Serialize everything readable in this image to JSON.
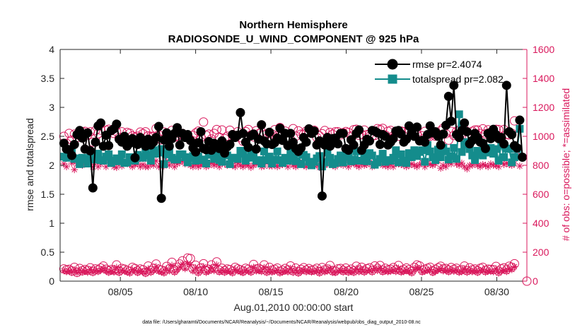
{
  "chart_data": {
    "type": "line",
    "title": "Northern Hemisphere",
    "subtitle": "RADIOSONDE_U_WIND_COMPONENT @ 925 hPa",
    "xlabel": "Aug.01,2010 00:00:00 start",
    "ylabel": "rmse and totalspread",
    "y2label": "# of obs: o=possible; *=assimilated",
    "footnote": "data file: /Users/gharamti/Documents/NCAR/Reanalysis/~/Documents/NCAR/Reanalysis/webpub/obs_diag_output_2010-08.nc",
    "xlim": [
      1,
      32
    ],
    "ylim": [
      0,
      4
    ],
    "y2lim": [
      0,
      1600
    ],
    "x_ticks": [
      5,
      10,
      15,
      20,
      25,
      30
    ],
    "x_tick_labels": [
      "08/05",
      "08/10",
      "08/15",
      "08/20",
      "08/25",
      "08/30"
    ],
    "y_ticks": [
      0,
      0.5,
      1,
      1.5,
      2,
      2.5,
      3,
      3.5,
      4
    ],
    "y_tick_labels": [
      "0",
      "0.5",
      "1",
      "1.5",
      "2",
      "2.5",
      "3",
      "3.5",
      "4"
    ],
    "y2_ticks": [
      0,
      200,
      400,
      600,
      800,
      1000,
      1200,
      1400,
      1600
    ],
    "y2_tick_labels": [
      "0",
      "200",
      "400",
      "600",
      "800",
      "1000",
      "1200",
      "1400",
      "1600"
    ],
    "legend_position": "top-right",
    "series": [
      {
        "name": "rmse",
        "legend": "rmse pr=2.4074",
        "color": "#000000",
        "marker": "circle",
        "values": [
          2.38,
          2.28,
          2.27,
          2.17,
          2.36,
          2.53,
          2.6,
          2.47,
          2.28,
          2.56,
          2.25,
          1.61,
          2.4,
          2.68,
          2.73,
          2.33,
          2.52,
          2.34,
          2.6,
          2.63,
          2.71,
          2.45,
          2.4,
          2.5,
          2.33,
          2.38,
          2.46,
          2.13,
          2.36,
          2.48,
          2.38,
          2.33,
          2.45,
          2.35,
          2.4,
          2.48,
          2.67,
          1.43,
          2.44,
          2.56,
          2.33,
          2.46,
          2.55,
          2.65,
          2.35,
          2.55,
          2.48,
          2.53,
          2.43,
          2.3,
          2.23,
          2.39,
          2.58,
          2.29,
          2.27,
          2.41,
          2.26,
          2.38,
          2.33,
          2.29,
          2.42,
          2.21,
          2.32,
          2.36,
          2.53,
          2.48,
          2.52,
          2.91,
          2.55,
          2.4,
          2.31,
          2.51,
          2.54,
          2.28,
          2.45,
          2.7,
          2.42,
          2.37,
          2.57,
          2.36,
          2.39,
          2.47,
          2.64,
          2.43,
          2.55,
          2.34,
          2.55,
          2.4,
          2.29,
          2.24,
          2.3,
          2.48,
          2.4,
          2.63,
          2.55,
          2.59,
          2.35,
          2.42,
          1.47,
          2.35,
          2.48,
          2.33,
          2.46,
          2.47,
          2.37,
          2.55,
          2.55,
          2.29,
          2.26,
          2.44,
          2.35,
          2.55,
          2.61,
          2.26,
          2.35,
          2.45,
          2.42,
          2.6,
          2.59,
          2.56,
          2.36,
          2.53,
          2.5,
          2.35,
          2.4,
          2.46,
          2.59,
          2.6,
          2.54,
          2.4,
          2.45,
          2.68,
          2.56,
          2.5,
          2.66,
          2.42,
          2.43,
          2.4,
          2.53,
          2.68,
          2.56,
          2.58,
          2.5,
          2.35,
          2.54,
          2.69,
          3.19,
          2.76,
          3.38,
          2.53,
          2.48,
          2.6,
          2.73,
          2.58,
          2.37,
          2.43,
          2.55,
          2.48,
          2.4,
          2.38,
          2.29,
          2.55,
          2.46,
          2.62,
          2.53,
          2.46,
          2.48,
          2.37,
          3.38,
          2.58,
          2.53,
          2.34,
          2.3,
          2.78,
          2.14
        ]
      },
      {
        "name": "totalspread",
        "legend": "totalspread pr=2.082",
        "color": "#148c8c",
        "marker": "square",
        "values": [
          2.15,
          2.13,
          2.17,
          2.22,
          2.11,
          2.12,
          2.02,
          2.13,
          2.1,
          2.03,
          2.2,
          2.1,
          2.1,
          2.2,
          2.09,
          2.08,
          2.15,
          2.19,
          2.04,
          2.08,
          2.12,
          2.07,
          2.19,
          2.04,
          2.05,
          2.14,
          2.09,
          2.08,
          2.18,
          2.15,
          2.13,
          2.25,
          2.17,
          2.08,
          2.26,
          2.2,
          2.22,
          2.28,
          2.02,
          2.19,
          2.25,
          2.13,
          2.1,
          2.1,
          2.19,
          2.19,
          2.14,
          2.05,
          2.13,
          2.16,
          2.08,
          2.15,
          2.09,
          2.1,
          2.03,
          2.19,
          2.18,
          2.11,
          2.21,
          2.09,
          2.06,
          2.2,
          2.17,
          2.02,
          2.13,
          2.13,
          2.11,
          2.25,
          2.2,
          2.08,
          2.13,
          2.23,
          2.14,
          2.08,
          2.09,
          2.03,
          2.24,
          2.09,
          2.15,
          2.03,
          2.1,
          2.24,
          2.09,
          2.04,
          2.13,
          2.08,
          2.22,
          2.12,
          2.07,
          2.21,
          2.02,
          2.18,
          2.14,
          2.06,
          2.0,
          2.06,
          2.12,
          2.16,
          1.98,
          2.05,
          2.22,
          2.13,
          2.02,
          2.04,
          2.11,
          2.17,
          2.05,
          2.15,
          2.15,
          2.07,
          2.1,
          2.24,
          2.08,
          2.08,
          2.19,
          2.07,
          2.21,
          2.17,
          2.01,
          2.05,
          2.11,
          2.2,
          2.06,
          2.09,
          2.08,
          2.13,
          2.26,
          2.05,
          2.19,
          2.08,
          2.04,
          2.21,
          2.14,
          2.26,
          2.16,
          2.23,
          2.26,
          2.06,
          2.35,
          2.24,
          2.14,
          2.09,
          2.27,
          2.14,
          2.3,
          2.24,
          2.1,
          2.16,
          2.3,
          2.11,
          2.88,
          2.23,
          2.36,
          2.4,
          2.28,
          2.17,
          2.09,
          2.25,
          2.19,
          2.17,
          2.3,
          2.22,
          2.3,
          2.2,
          2.28,
          2.08,
          2.36,
          2.14,
          2.29,
          2.28,
          2.05,
          2.14,
          2.28,
          2.63
        ]
      },
      {
        "name": "possible obs",
        "color": "#d9185c",
        "marker": "open-circle",
        "axis": "right",
        "values": [
          1000,
          952,
          1020,
          975,
          1015,
          992,
          1005,
          1032,
          1034,
          1010,
          1031,
          960,
          1040,
          1019,
          1043,
          974,
          1042,
          1049,
          1039,
          1020,
          1032,
          992,
          1031,
          979,
          1027,
          1021,
          1003,
          995,
          1001,
          1029,
          1019,
          1031,
          1003,
          1000,
          1000,
          1054,
          1011,
          976,
          1030,
          1016,
          982,
          1041,
          993,
          1003,
          1018,
          1020,
          1003,
          1006,
          972,
          1006,
          1023,
          1036,
          992,
          1099,
          1007,
          1015,
          982,
          1020,
          1047,
          994,
          1044,
          985,
          1001,
          1042,
          1012,
          1006,
          1032,
          991,
          966,
          1033,
          1047,
          1009,
          996,
          1039,
          1019,
          1030,
          1010,
          1017,
          1020,
          1016,
          1046,
          1004,
          1061,
          1015,
          1036,
          978,
          979,
          1053,
          1001,
          1038,
          1015,
          1016,
          1036,
          1025,
          1033,
          1042,
          992,
          1003,
          1018,
          1040,
          993,
          1027,
          1014,
          1031,
          1032,
          1010,
          1025,
          1033,
          1026,
          1002,
          1046,
          1049,
          1007,
          1014,
          1043,
          1012,
          1015,
          1001,
          1006,
          1053,
          1047,
          1055,
          1009,
          1035,
          1041,
          1003,
          1032,
          1001,
          1036,
          1032,
          1021,
          1046,
          1029,
          1039,
          1011,
          976,
          1003,
          1034,
          1002,
          1001,
          1020,
          1001,
          1016,
          1039,
          1057,
          1018,
          974,
          1035,
          1006,
          1034,
          1043,
          1024,
          1049,
          1008,
          990,
          1035,
          1044,
          1044,
          1020,
          1052,
          1017,
          1045,
          1029,
          1035,
          1048,
          1047,
          992,
          1047,
          1013,
          1009,
          1021,
          1107
        ]
      },
      {
        "name": "assimilated obs",
        "color": "#d9185c",
        "marker": "asterisk",
        "axis": "right",
        "values": [
          810,
          790,
          860,
          815,
          770,
          810,
          825,
          800,
          810,
          815,
          820,
          790,
          820,
          790,
          810,
          830,
          790,
          830,
          815,
          790,
          785,
          815,
          795,
          820,
          830,
          805,
          790,
          805,
          810,
          790,
          805,
          790,
          790,
          810,
          800,
          830,
          790,
          810,
          795,
          830,
          800,
          820,
          790,
          810,
          820,
          830,
          810,
          835,
          800,
          790,
          805,
          790,
          800,
          810,
          790,
          800,
          815,
          800,
          810,
          790,
          820,
          810,
          800,
          830,
          800,
          790,
          815,
          800,
          790,
          805,
          800,
          785,
          800,
          810,
          825,
          790,
          795,
          830,
          795,
          795,
          805,
          790,
          800,
          805,
          810,
          790,
          830,
          800,
          790,
          815,
          815,
          800,
          790,
          800,
          815,
          800,
          800,
          785,
          820,
          800,
          810,
          810,
          800,
          790,
          805,
          815,
          800,
          830,
          790,
          810,
          815,
          800,
          790,
          810,
          800,
          805,
          820,
          790,
          805,
          810,
          830,
          800,
          800,
          790,
          805,
          790,
          820,
          810,
          805,
          800,
          790,
          800,
          810,
          800,
          790,
          805,
          820,
          790,
          815,
          805,
          800,
          810,
          830,
          780,
          800,
          790,
          820,
          810,
          850,
          810,
          800,
          815,
          790,
          775,
          800,
          800,
          815,
          800,
          790,
          805,
          800,
          790,
          810,
          800,
          800,
          790,
          830,
          805,
          815,
          805,
          800,
          810,
          870,
          795
        ]
      },
      {
        "name": "possible obs (low)",
        "color": "#d9185c",
        "marker": "open-circle",
        "axis": "right",
        "values": [
          85,
          78,
          82,
          70,
          95,
          60,
          88,
          72,
          80,
          75,
          92,
          68,
          85,
          78,
          90,
          104,
          83,
          72,
          80,
          76,
          112,
          70,
          88,
          83,
          74,
          68,
          95,
          87,
          70,
          84,
          78,
          62,
          104,
          73,
          89,
          118,
          82,
          76,
          68,
          102,
          85,
          130,
          74,
          96,
          118,
          140,
          103,
          160,
          156,
          85,
          110,
          68,
          92,
          120,
          74,
          82,
          112,
          88,
          133,
          75,
          89,
          72,
          84,
          79,
          68,
          95,
          85,
          78,
          70,
          89,
          82,
          72,
          115,
          84,
          88,
          79,
          112,
          71,
          95,
          76,
          82,
          90,
          68,
          75,
          88,
          77,
          105,
          72,
          90,
          66,
          81,
          93,
          77,
          87,
          75,
          79,
          89,
          67,
          94,
          78,
          84,
          108,
          72,
          70,
          85,
          88,
          74,
          90,
          72,
          83,
          71,
          103,
          78,
          96,
          73,
          86,
          92,
          74,
          105,
          88,
          108,
          75,
          89,
          78,
          82,
          94,
          79,
          108,
          74,
          80,
          91,
          79,
          68,
          95,
          112,
          105,
          75,
          82,
          89,
          96,
          70,
          81,
          92,
          103,
          85,
          88,
          76,
          94,
          82,
          89,
          73,
          79,
          104,
          73,
          92,
          78,
          84,
          71,
          89,
          95,
          74,
          83,
          81,
          79,
          102,
          68,
          85,
          92,
          79,
          103,
          96,
          120
        ]
      },
      {
        "name": "assimilated obs (low)",
        "color": "#d9185c",
        "marker": "asterisk",
        "axis": "right",
        "values": [
          72,
          65,
          70,
          60,
          78,
          55,
          75,
          62,
          68,
          60,
          80,
          58,
          72,
          66,
          76,
          88,
          70,
          60,
          68,
          62,
          95,
          58,
          74,
          70,
          62,
          55,
          80,
          74,
          58,
          70,
          66,
          52,
          86,
          60,
          74,
          100,
          68,
          62,
          56,
          85,
          70,
          110,
          60,
          80,
          98,
          118,
          86,
          120,
          112,
          70,
          92,
          56,
          76,
          100,
          60,
          68,
          94,
          72,
          112,
          62,
          74,
          60,
          70,
          65,
          56,
          80,
          70,
          64,
          58,
          74,
          68,
          60,
          96,
          70,
          72,
          66,
          94,
          58,
          80,
          62,
          68,
          75,
          56,
          62,
          72,
          64,
          88,
          60,
          75,
          54,
          67,
          78,
          64,
          72,
          62,
          66,
          74,
          55,
          78,
          64,
          70,
          90,
          60,
          58,
          70,
          73,
          62,
          75,
          60,
          68,
          58,
          86,
          65,
          80,
          60,
          72,
          76,
          62,
          88,
          73,
          90,
          62,
          74,
          65,
          68,
          78,
          66,
          90,
          61,
          66,
          76,
          65,
          56,
          79,
          94,
          88,
          62,
          68,
          74,
          80,
          58,
          67,
          76,
          86,
          70,
          73,
          63,
          78,
          68,
          74,
          60,
          65,
          86,
          60,
          76,
          65,
          70,
          59,
          74,
          79,
          61,
          69,
          67,
          65,
          85,
          56,
          70,
          76,
          66,
          86,
          80,
          100
        ]
      }
    ]
  }
}
